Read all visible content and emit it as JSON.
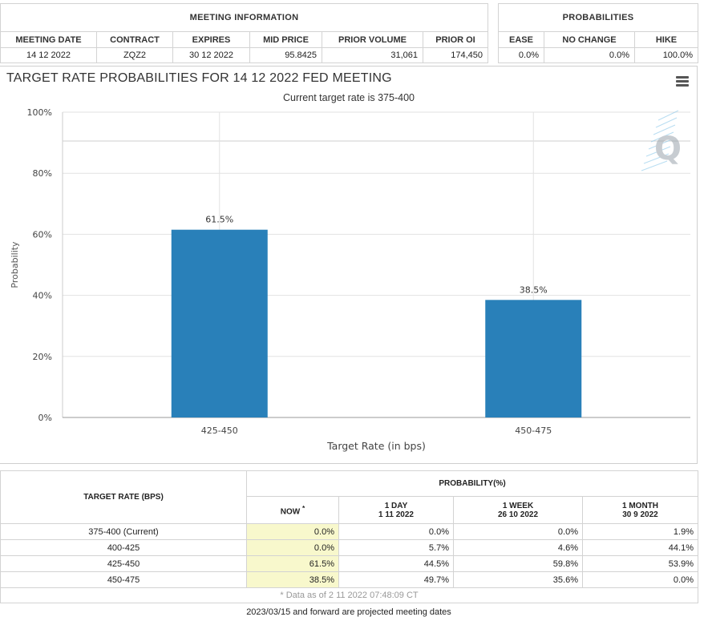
{
  "meeting_info": {
    "title": "MEETING INFORMATION",
    "headers": [
      "MEETING DATE",
      "CONTRACT",
      "EXPIRES",
      "MID PRICE",
      "PRIOR VOLUME",
      "PRIOR OI"
    ],
    "values": [
      "14 12 2022",
      "ZQZ2",
      "30 12 2022",
      "95.8425",
      "31,061",
      "174,450"
    ]
  },
  "probabilities": {
    "title": "PROBABILITIES",
    "headers": [
      "EASE",
      "NO CHANGE",
      "HIKE"
    ],
    "values": [
      "0.0%",
      "0.0%",
      "100.0%"
    ]
  },
  "chart": {
    "title": "TARGET RATE PROBABILITIES FOR 14 12 2022 FED MEETING",
    "subtitle": "Current target rate is 375-400",
    "menu_icon": "hamburger-menu-icon",
    "watermark": "Q"
  },
  "chart_data": {
    "type": "bar",
    "categories": [
      "425-450",
      "450-475"
    ],
    "values": [
      61.5,
      38.5
    ],
    "data_labels": [
      "61.5%",
      "38.5%"
    ],
    "xlabel": "Target Rate (in bps)",
    "ylabel": "Probability",
    "ylim": [
      0,
      100
    ],
    "yticks": [
      "0%",
      "20%",
      "40%",
      "60%",
      "80%",
      "100%"
    ],
    "bar_color": "#2980b9",
    "grid": true
  },
  "prob_table": {
    "target_header": "TARGET RATE (BPS)",
    "prob_header": "PROBABILITY(%)",
    "columns": [
      {
        "line1": "NOW",
        "line2": "",
        "star": "*"
      },
      {
        "line1": "1 DAY",
        "line2": "1 11 2022",
        "star": ""
      },
      {
        "line1": "1 WEEK",
        "line2": "26 10 2022",
        "star": ""
      },
      {
        "line1": "1 MONTH",
        "line2": "30 9 2022",
        "star": ""
      }
    ],
    "rows": [
      {
        "rate": "375-400 (Current)",
        "vals": [
          "0.0%",
          "0.0%",
          "0.0%",
          "1.9%"
        ]
      },
      {
        "rate": "400-425",
        "vals": [
          "0.0%",
          "5.7%",
          "4.6%",
          "44.1%"
        ]
      },
      {
        "rate": "425-450",
        "vals": [
          "61.5%",
          "44.5%",
          "59.8%",
          "53.9%"
        ]
      },
      {
        "rate": "450-475",
        "vals": [
          "38.5%",
          "49.7%",
          "35.6%",
          "0.0%"
        ]
      }
    ],
    "as_of": "* Data as of 2 11 2022 07:48:09 CT"
  },
  "footer": "2023/03/15 and forward are projected meeting dates"
}
